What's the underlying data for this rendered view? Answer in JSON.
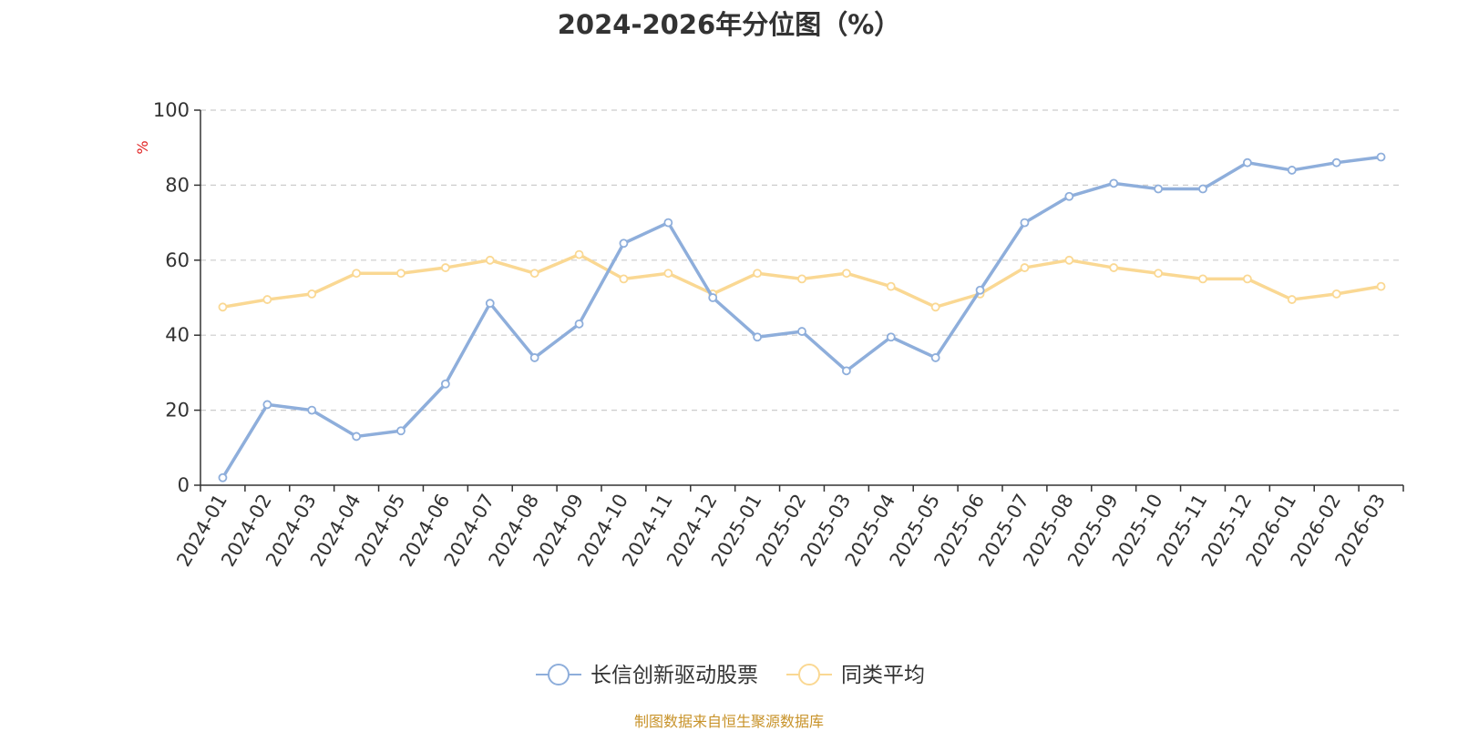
{
  "chart_data": {
    "type": "line",
    "title": "2024-2026年分位图（%）",
    "ylabel": "%",
    "xlabel": "",
    "ylim": [
      0,
      100
    ],
    "yticks": [
      0,
      20,
      40,
      60,
      80,
      100
    ],
    "grid": true,
    "legend_position": "bottom",
    "categories": [
      "2024-01",
      "2024-02",
      "2024-03",
      "2024-04",
      "2024-05",
      "2024-06",
      "2024-07",
      "2024-08",
      "2024-09",
      "2024-10",
      "2024-11",
      "2024-12",
      "2025-01",
      "2025-02",
      "2025-03",
      "2025-04",
      "2025-05",
      "2025-06",
      "2025-07",
      "2025-08",
      "2025-09",
      "2025-10",
      "2025-11",
      "2025-12",
      "2026-01",
      "2026-02",
      "2026-03"
    ],
    "series": [
      {
        "name": "长信创新驱动股票",
        "color": "#8eaedb",
        "values": [
          2,
          21.5,
          20,
          13,
          14.5,
          27,
          48.5,
          34,
          43,
          64.5,
          70,
          50,
          39.5,
          41,
          30.5,
          39.5,
          34,
          52,
          70,
          77,
          80.5,
          79,
          79,
          86,
          84,
          86,
          87.5
        ]
      },
      {
        "name": "同类平均",
        "color": "#fad893",
        "values": [
          47.5,
          49.5,
          51,
          56.5,
          56.5,
          58,
          60,
          56.5,
          61.5,
          55,
          56.5,
          51,
          56.5,
          55,
          56.5,
          53,
          47.5,
          51,
          58,
          60,
          58,
          56.5,
          55,
          55,
          49.5,
          51,
          53
        ]
      }
    ]
  },
  "source_note": "制图数据来自恒生聚源数据库"
}
